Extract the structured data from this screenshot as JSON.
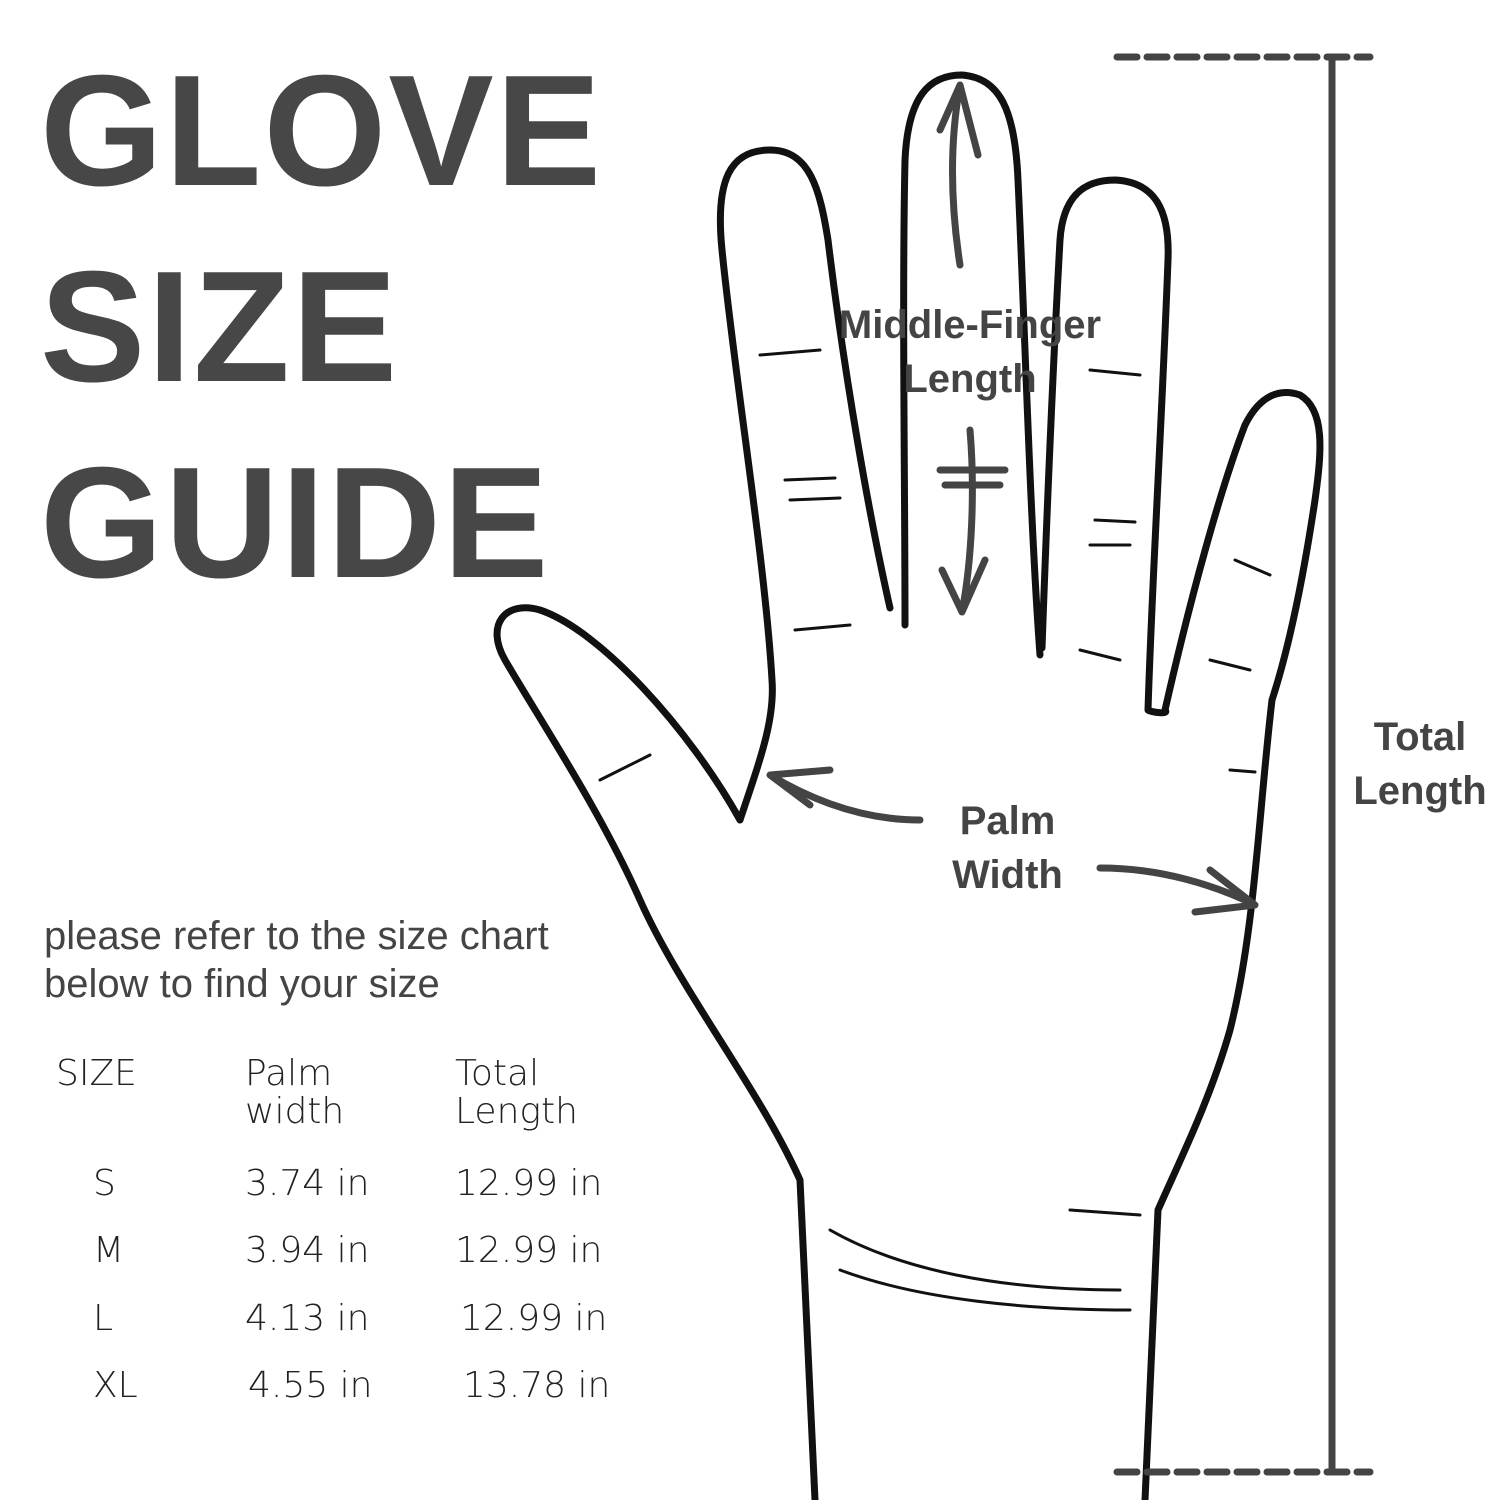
{
  "title": {
    "line1": "GLOVE",
    "line2": "SIZE",
    "line3": "GUIDE"
  },
  "instructions": {
    "line1": "please refer to the size chart",
    "line2": "below to find your size"
  },
  "diagram_labels": {
    "middle_finger": {
      "line1": "Middle-Finger",
      "line2": "Length"
    },
    "palm_width": {
      "line1": "Palm",
      "line2": "Width"
    },
    "total_length": {
      "line1": "Total",
      "line2": "Length"
    }
  },
  "size_table": {
    "headers": [
      {
        "line1": "SIZE",
        "line2": ""
      },
      {
        "line1": "Palm",
        "line2": "width"
      },
      {
        "line1": "Total",
        "line2": "Length"
      }
    ],
    "rows": [
      {
        "size": "S",
        "palm_width": "3.74 in",
        "total_length": "12.99 in"
      },
      {
        "size": "M",
        "palm_width": "3.94 in",
        "total_length": "12.99 in"
      },
      {
        "size": "L",
        "palm_width": "4.13 in",
        "total_length": "12.99 in"
      },
      {
        "size": "XL",
        "palm_width": "4.55 in",
        "total_length": "13.78 in"
      }
    ]
  },
  "colors": {
    "title": "#474747",
    "outline": "#111111",
    "arrow": "#444444"
  }
}
